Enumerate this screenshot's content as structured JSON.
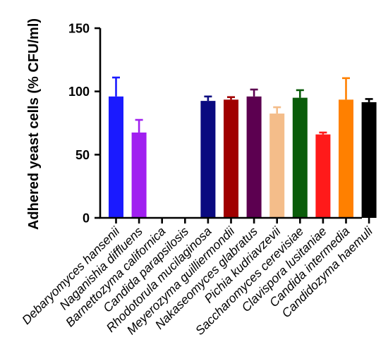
{
  "chart_data": {
    "type": "bar",
    "title": "",
    "xlabel": "",
    "ylabel": "Adhered yeast cells (% CFU/ml)",
    "ylim": [
      0,
      150
    ],
    "yticks": [
      "0",
      "50",
      "100",
      "150"
    ],
    "grid": false,
    "legend": "none",
    "categories": [
      "Debaryomyces hansenii",
      "Naganishia diffluens",
      "Barnettozyma californica",
      "Candida parapsilosis",
      "Rhodotorula mucilaginosa",
      "Meyerozyma guilliermondii",
      "Nakaseomyces glabratus",
      "Pichia kudriavzevii",
      "Saccharomyces cerevisiae",
      "Clavispora lusitaniae",
      "Candida intermedia",
      "Candidozyma haemuli"
    ],
    "values": [
      96,
      67.5,
      0,
      0,
      92.5,
      93.5,
      96,
      82.5,
      95,
      66,
      93.5,
      91.5
    ],
    "errors": [
      15,
      10,
      0,
      0,
      3.5,
      2,
      5.5,
      5,
      6,
      1.5,
      17,
      2.5
    ],
    "colors": [
      "#1a1aff",
      "#a020f0",
      "#999999",
      "#999999",
      "#0a0a80",
      "#a00000",
      "#5c0050",
      "#f4bd8a",
      "#0a5c0a",
      "#ff1a1a",
      "#ff8000",
      "#000000"
    ]
  }
}
